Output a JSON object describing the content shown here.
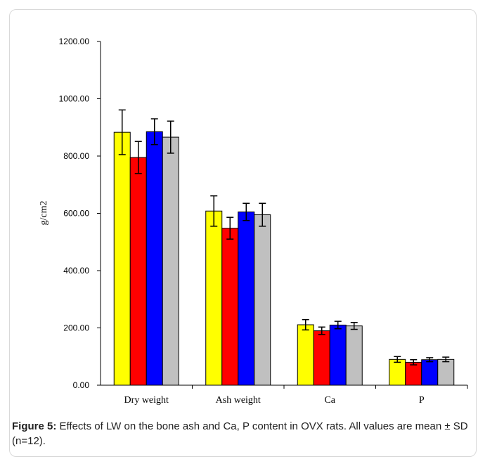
{
  "caption": {
    "label": "Figure 5:",
    "text": " Effects of LW on the bone ash and Ca, P content in OVX rats. All values are mean ± SD (n=12)."
  },
  "chart_data": {
    "type": "bar",
    "ylabel": "g/cm2",
    "ylim": [
      0,
      1200
    ],
    "yticks": [
      "0.00",
      "200.00",
      "400.00",
      "600.00",
      "800.00",
      "1000.00",
      "1200.00"
    ],
    "categories": [
      "Dry weight",
      "Ash weight",
      "Ca",
      "P"
    ],
    "colors": [
      "#ffff00",
      "#ff0000",
      "#0000ff",
      "#c0c0c0"
    ],
    "series": [
      {
        "values": [
          883,
          608,
          211,
          90
        ],
        "sd": [
          78,
          53,
          18,
          10
        ]
      },
      {
        "values": [
          795,
          548,
          190,
          80
        ],
        "sd": [
          56,
          38,
          13,
          9
        ]
      },
      {
        "values": [
          885,
          605,
          210,
          89
        ],
        "sd": [
          45,
          30,
          13,
          7
        ]
      },
      {
        "values": [
          866,
          595,
          207,
          90
        ],
        "sd": [
          56,
          40,
          12,
          8
        ]
      }
    ],
    "grid": false,
    "legend": "none"
  }
}
